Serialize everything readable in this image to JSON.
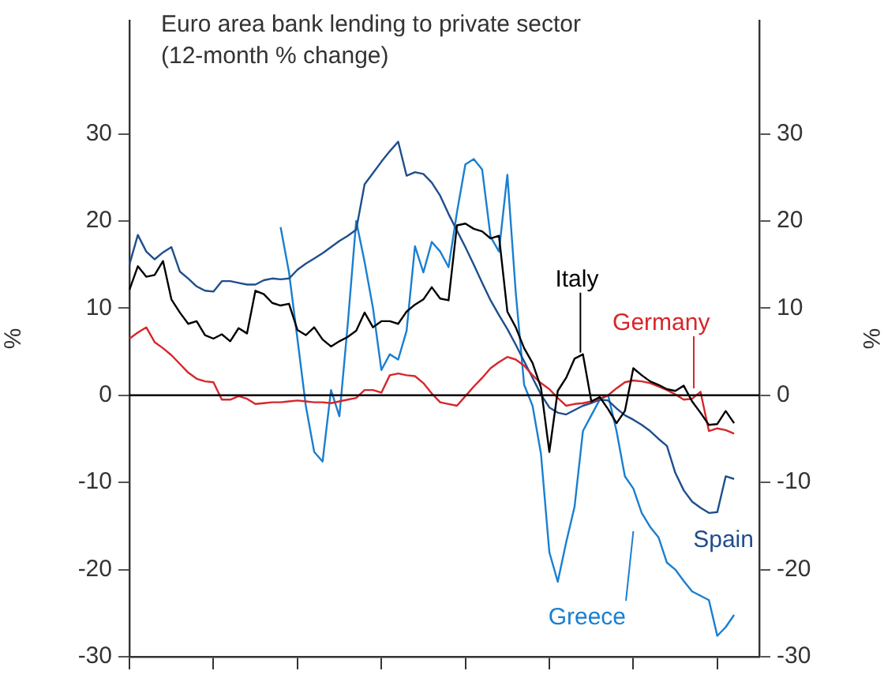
{
  "chart_data": {
    "type": "line",
    "title": "Euro area bank lending to private sector",
    "subtitle": "(12-month % change)",
    "ylabel": "%",
    "y2label": "%",
    "categories": [
      null,
      null,
      null,
      null,
      null,
      null,
      null,
      null,
      null,
      null,
      null,
      null,
      null,
      null,
      null,
      null,
      null,
      null,
      null,
      null,
      null,
      null,
      null,
      null,
      null,
      null,
      null,
      null,
      null,
      null,
      null,
      null,
      null,
      null,
      null,
      null,
      null,
      null,
      null,
      null,
      null,
      null,
      null,
      null,
      null,
      null,
      null,
      null,
      null,
      null,
      null,
      null,
      null,
      null,
      null,
      null,
      null,
      null,
      null,
      null,
      null,
      null,
      null,
      null,
      null,
      null,
      null,
      null,
      null,
      null,
      null,
      null,
      null,
      null,
      null,
      null
    ],
    "ylim": [
      -30,
      43
    ],
    "yticks": [
      -30,
      -20,
      -10,
      0,
      10,
      20,
      30
    ],
    "y2lim": [
      -30,
      43
    ],
    "y2ticks": [
      -30,
      -20,
      -10,
      0,
      10,
      20,
      30
    ],
    "tick_labels": "y",
    "grid": false,
    "legend": false,
    "marker": "none",
    "line_style": "solid",
    "ref_lines": [
      {
        "axis": "y",
        "value": 0,
        "color": "#000000"
      }
    ],
    "series": [
      {
        "name": "Italy",
        "color": "#000000",
        "values": [
          12.1,
          14.8,
          13.6,
          13.8,
          15.4,
          11,
          9.5,
          8.2,
          8.5,
          6.9,
          6.5,
          7,
          6.2,
          7.7,
          7.1,
          12,
          11.6,
          10.6,
          10.3,
          10.5,
          7.5,
          6.9,
          7.8,
          6.4,
          5.6,
          6.2,
          6.7,
          7.4,
          9.5,
          7.8,
          8.5,
          8.5,
          8.2,
          9.6,
          10.4,
          11,
          12.4,
          11.1,
          10.9,
          19.5,
          19.7,
          19.1,
          18.8,
          18,
          18.3,
          9.6,
          7.8,
          5.4,
          3.7,
          0.9,
          -6.5,
          0.5,
          2,
          4.2,
          4.7,
          -0.7,
          -0.2,
          -1.6,
          -3.2,
          -1.8,
          3.1,
          2.3,
          1.6,
          1.2,
          0.7,
          0.5,
          1.1,
          -0.7,
          -2,
          -3.4,
          -3.3,
          -1.8,
          -3.2,
          null,
          null,
          null
        ]
      },
      {
        "name": "Germany",
        "color": "#d7262b",
        "values": [
          6.5,
          7.2,
          7.8,
          6.1,
          5.4,
          4.6,
          3.6,
          2.6,
          1.9,
          1.6,
          1.5,
          -0.5,
          -0.5,
          -0.1,
          -0.4,
          -1,
          -0.9,
          -0.8,
          -0.8,
          -0.7,
          -0.6,
          -0.7,
          -0.8,
          -0.8,
          -0.9,
          -0.7,
          -0.5,
          -0.3,
          0.6,
          0.6,
          0.3,
          2.3,
          2.5,
          2.3,
          2.2,
          1.4,
          0.2,
          -0.8,
          -1,
          -1.2,
          -0.1,
          1,
          2,
          3.1,
          3.8,
          4.4,
          4.1,
          3.4,
          2.3,
          1.4,
          0.7,
          -0.3,
          -1.2,
          -1,
          -0.9,
          -0.7,
          -0.4,
          0,
          0.8,
          1.5,
          1.7,
          1.6,
          1.4,
          1,
          0.6,
          0.1,
          -0.5,
          -0.4,
          0.4,
          -4.1,
          -3.8,
          -4,
          -4.4,
          null,
          null,
          null
        ]
      },
      {
        "name": "Spain",
        "color": "#1f4e8c",
        "values": [
          15,
          18.4,
          16.5,
          15.6,
          16.4,
          17,
          14.2,
          13.4,
          12.5,
          12,
          11.9,
          13.1,
          13.1,
          12.9,
          12.7,
          12.7,
          13.2,
          13.4,
          13.3,
          13.4,
          14.4,
          15.1,
          15.7,
          16.3,
          17,
          17.7,
          18.3,
          19,
          24.2,
          25.5,
          26.8,
          28,
          29.1,
          25.2,
          25.6,
          25.4,
          24.4,
          22.9,
          20.8,
          18.9,
          17,
          15,
          12.9,
          10.9,
          9.2,
          7.6,
          5.8,
          3.9,
          2,
          0.1,
          -1.4,
          -2,
          -2.2,
          -1.7,
          -1.2,
          -0.9,
          -0.5,
          -0.6,
          -1.5,
          -2.3,
          -2.8,
          -3.4,
          -4.1,
          -5,
          -5.8,
          -8.9,
          -10.9,
          -12.2,
          -12.9,
          -13.5,
          -13.4,
          -9.3,
          -9.6,
          null,
          null,
          null
        ]
      },
      {
        "name": "Greece",
        "color": "#1a7fd0",
        "values": [
          null,
          null,
          null,
          null,
          null,
          null,
          null,
          null,
          null,
          null,
          null,
          null,
          null,
          null,
          null,
          null,
          null,
          null,
          19.3,
          14.1,
          6.5,
          -1.2,
          -6.5,
          -7.6,
          0.6,
          -2.4,
          8.2,
          20,
          15.3,
          10,
          2.9,
          4.7,
          4.1,
          7.4,
          17.1,
          14.1,
          17.6,
          16.5,
          14.7,
          21,
          26.5,
          27.1,
          25.9,
          18.2,
          16.5,
          25.3,
          11.8,
          1.2,
          -1.2,
          -6.7,
          -18,
          -21.4,
          -16.9,
          -12.8,
          -4.1,
          -2.3,
          -0.5,
          0,
          -4.1,
          -9.3,
          -10.7,
          -13.5,
          -15.1,
          -16.3,
          -19.2,
          -20,
          -21.3,
          -22.5,
          -23,
          -23.5,
          -27.6,
          -26.6,
          -25.2,
          null,
          null,
          null
        ]
      }
    ]
  }
}
